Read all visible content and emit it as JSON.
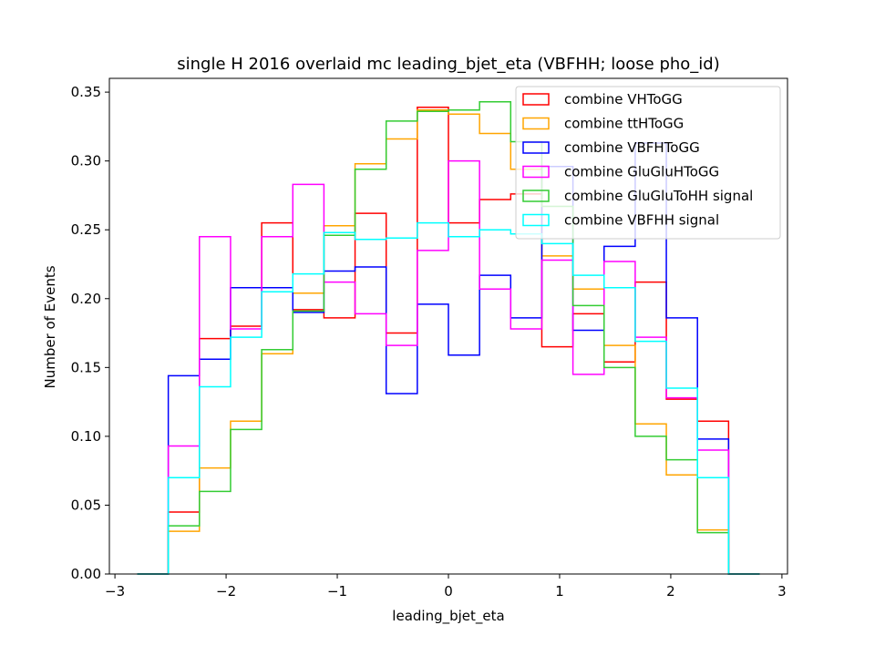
{
  "chart_data": {
    "type": "histogram-step",
    "title": "single H 2016 overlaid mc leading_bjet_eta (VBFHH; loose pho_id)",
    "xlabel": "leading_bjet_eta",
    "ylabel": "Number of Events",
    "xlim": [
      -3.05,
      3.05
    ],
    "ylim": [
      0,
      0.36
    ],
    "xticks": [
      -3,
      -2,
      -1,
      0,
      1,
      2,
      3
    ],
    "xtick_labels": [
      "−3",
      "−2",
      "−1",
      "0",
      "1",
      "2",
      "3"
    ],
    "yticks": [
      0.0,
      0.05,
      0.1,
      0.15,
      0.2,
      0.25,
      0.3,
      0.35
    ],
    "ytick_labels": [
      "0.00",
      "0.05",
      "0.10",
      "0.15",
      "0.20",
      "0.25",
      "0.30",
      "0.35"
    ],
    "grid": false,
    "legend_position": "top-right",
    "bin_edges": [
      -2.8,
      -2.52,
      -2.24,
      -1.96,
      -1.68,
      -1.4,
      -1.12,
      -0.84,
      -0.56,
      -0.28,
      0.0,
      0.28,
      0.56,
      0.84,
      1.12,
      1.4,
      1.68,
      1.96,
      2.24,
      2.52,
      2.8
    ],
    "series": [
      {
        "name": "combine VHToGG",
        "color": "#ff0000",
        "values": [
          0.0,
          0.045,
          0.171,
          0.18,
          0.255,
          0.192,
          0.186,
          0.262,
          0.175,
          0.339,
          0.255,
          0.272,
          0.276,
          0.165,
          0.189,
          0.154,
          0.212,
          0.127,
          0.111,
          0.0
        ]
      },
      {
        "name": "combine ttHToGG",
        "color": "#ffa500",
        "values": [
          0.0,
          0.031,
          0.077,
          0.111,
          0.16,
          0.204,
          0.253,
          0.298,
          0.316,
          0.337,
          0.334,
          0.32,
          0.294,
          0.231,
          0.207,
          0.166,
          0.109,
          0.072,
          0.032,
          0.0
        ]
      },
      {
        "name": "combine VBFHToGG",
        "color": "#0000ff",
        "values": [
          0.0,
          0.144,
          0.156,
          0.208,
          0.208,
          0.19,
          0.22,
          0.223,
          0.131,
          0.196,
          0.159,
          0.217,
          0.186,
          0.296,
          0.177,
          0.238,
          0.313,
          0.186,
          0.098,
          0.0
        ]
      },
      {
        "name": "combine GluGluHToGG",
        "color": "#ff00ff",
        "values": [
          0.0,
          0.093,
          0.245,
          0.178,
          0.245,
          0.283,
          0.212,
          0.189,
          0.166,
          0.235,
          0.3,
          0.207,
          0.178,
          0.228,
          0.145,
          0.227,
          0.172,
          0.128,
          0.09,
          0.0
        ]
      },
      {
        "name": "combine GluGluToHH signal",
        "color": "#33cc33",
        "values": [
          0.0,
          0.035,
          0.06,
          0.105,
          0.163,
          0.191,
          0.246,
          0.294,
          0.329,
          0.336,
          0.337,
          0.343,
          0.314,
          0.267,
          0.195,
          0.15,
          0.1,
          0.083,
          0.03,
          0.0
        ]
      },
      {
        "name": "combine VBFHH signal",
        "color": "#00ffff",
        "values": [
          0.0,
          0.07,
          0.136,
          0.172,
          0.205,
          0.218,
          0.248,
          0.243,
          0.244,
          0.255,
          0.245,
          0.25,
          0.247,
          0.24,
          0.217,
          0.208,
          0.169,
          0.135,
          0.07,
          0.0
        ]
      }
    ]
  }
}
